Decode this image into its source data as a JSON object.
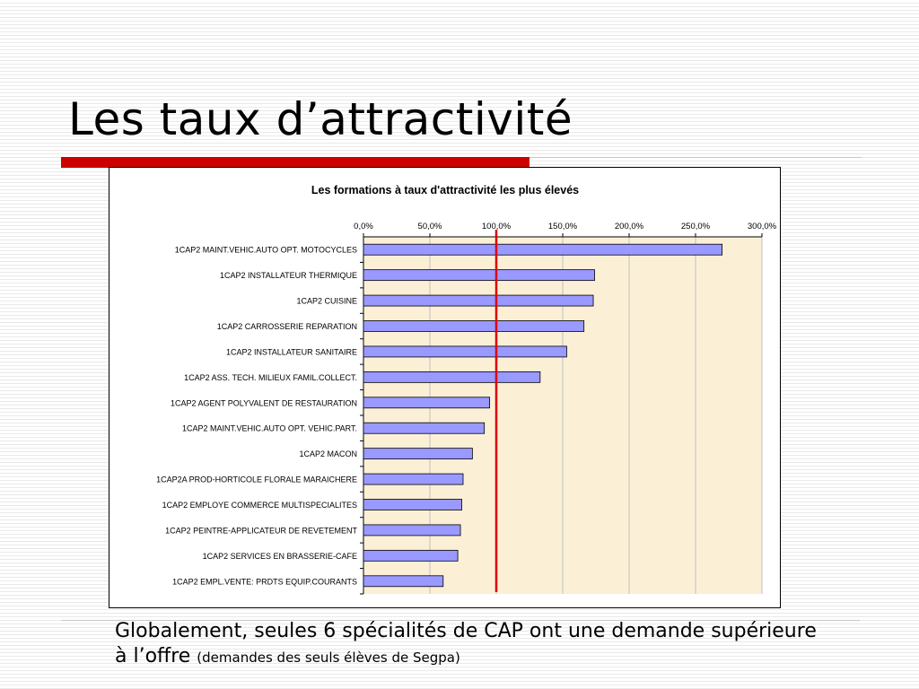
{
  "slide": {
    "title": "Les taux d’attractivité",
    "caption_main": "Globalement, seules 6 spécialités de CAP ont une demande supérieure à l’offre",
    "caption_note": "(demandes des seuls élèves de Segpa)"
  },
  "colors": {
    "accent_bar": "#cc0000",
    "bar_fill": "#9999ff",
    "plot_bg": "#fbf0d6",
    "reference_line": "#dd0000"
  },
  "chart_data": {
    "type": "bar",
    "orientation": "horizontal",
    "title": "Les formations à taux d'attractivité les plus élevés",
    "xlim": [
      0,
      300
    ],
    "tick_values": [
      0,
      50,
      100,
      150,
      200,
      250,
      300
    ],
    "tick_labels": [
      "0,0%",
      "50,0%",
      "100,0%",
      "150,0%",
      "200,0%",
      "250,0%",
      "300,0%"
    ],
    "grid": true,
    "reference_line": 100,
    "categories": [
      "1CAP2  MAINT.VEHIC.AUTO OPT. MOTOCYCLES",
      "1CAP2  INSTALLATEUR THERMIQUE",
      "1CAP2  CUISINE",
      "1CAP2 CARROSSERIE REPARATION",
      "1CAP2  INSTALLATEUR SANITAIRE",
      "1CAP2  ASS. TECH. MILIEUX FAMIL.COLLECT.",
      "1CAP2  AGENT POLYVALENT DE RESTAURATION",
      "1CAP2  MAINT.VEHIC.AUTO OPT. VEHIC.PART.",
      "1CAP2  MACON",
      "1CAP2A PROD-HORTICOLE FLORALE MARAICHERE",
      "1CAP2  EMPLOYE COMMERCE MULTISPECIALITES",
      "1CAP2  PEINTRE-APPLICATEUR DE REVETEMENT",
      "1CAP2  SERVICES EN BRASSERIE-CAFE",
      "1CAP2  EMPL.VENTE: PRDTS EQUIP.COURANTS"
    ],
    "values": [
      270,
      174,
      173,
      166,
      153,
      133,
      95,
      91,
      82,
      75,
      74,
      73,
      71,
      60
    ]
  }
}
